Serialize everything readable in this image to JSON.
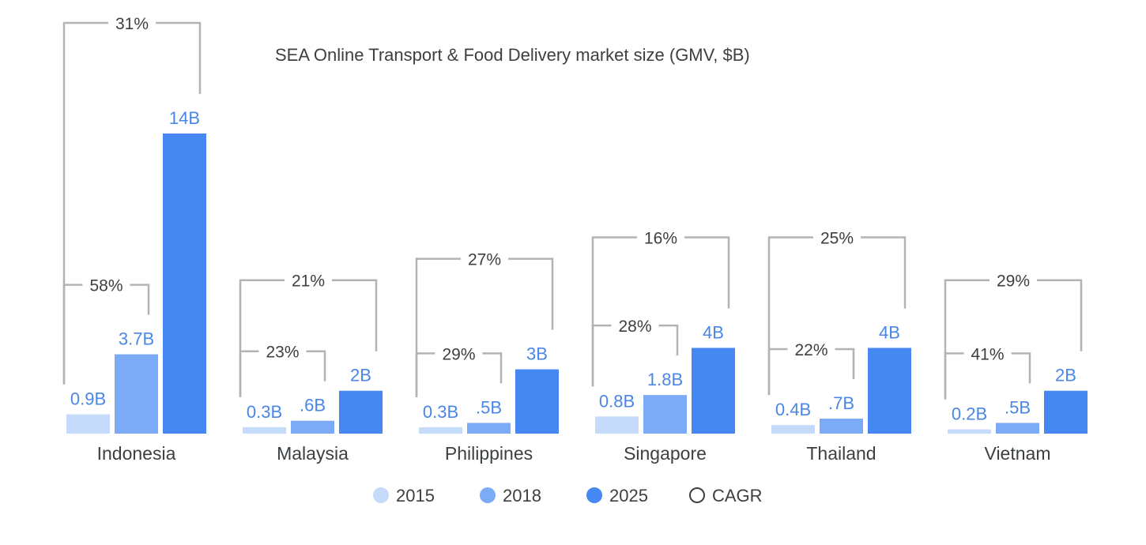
{
  "chart_data": {
    "type": "bar",
    "title": "SEA Online Transport & Food Delivery market size  (GMV, $B)",
    "categories": [
      "Indonesia",
      "Malaysia",
      "Philippines",
      "Singapore",
      "Thailand",
      "Vietnam"
    ],
    "series": [
      {
        "name": "2015",
        "color": "#c6dafc",
        "values": [
          0.9,
          0.3,
          0.3,
          0.8,
          0.4,
          0.2
        ],
        "labels": [
          "0.9B",
          "0.3B",
          "0.3B",
          "0.8B",
          "0.4B",
          "0.2B"
        ]
      },
      {
        "name": "2018",
        "color": "#7baaf7",
        "values": [
          3.7,
          0.6,
          0.5,
          1.8,
          0.7,
          0.5
        ],
        "labels": [
          "3.7B",
          ".6B",
          ".5B",
          "1.8B",
          ".7B",
          ".5B"
        ]
      },
      {
        "name": "2025",
        "color": "#4688f1",
        "values": [
          14,
          2,
          3,
          4,
          4,
          2
        ],
        "labels": [
          "14B",
          "2B",
          "3B",
          "4B",
          "4B",
          "2B"
        ]
      }
    ],
    "cagr": [
      {
        "category": "Indonesia",
        "cagr_2015_2018": "58%",
        "cagr_2015_2025": "31%"
      },
      {
        "category": "Malaysia",
        "cagr_2015_2018": "23%",
        "cagr_2015_2025": "21%"
      },
      {
        "category": "Philippines",
        "cagr_2015_2018": "29%",
        "cagr_2015_2025": "27%"
      },
      {
        "category": "Singapore",
        "cagr_2015_2018": "28%",
        "cagr_2015_2025": "16%"
      },
      {
        "category": "Thailand",
        "cagr_2015_2018": "22%",
        "cagr_2015_2025": "25%"
      },
      {
        "category": "Vietnam",
        "cagr_2015_2018": "41%",
        "cagr_2015_2025": "29%"
      }
    ],
    "legend": [
      {
        "label": "2015",
        "color": "#c6dafc",
        "style": "filled"
      },
      {
        "label": "2018",
        "color": "#7baaf7",
        "style": "filled"
      },
      {
        "label": "2025",
        "color": "#4688f1",
        "style": "filled"
      },
      {
        "label": "CAGR",
        "color": "#3c4043",
        "style": "outline"
      }
    ],
    "legend_position": "bottom",
    "grid": false,
    "axes_visible": false,
    "value_label_color": "#4a86e8",
    "bracket_color": "#b3b3b3",
    "text_color": "#3c4043"
  }
}
